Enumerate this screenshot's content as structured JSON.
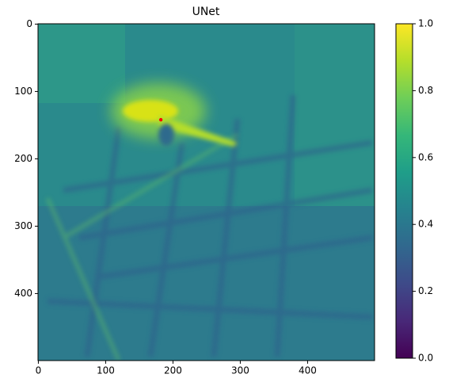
{
  "chart_data": {
    "type": "heatmap",
    "title": "UNet",
    "xlim": [
      -0.5,
      499.5
    ],
    "ylim": [
      499.5,
      -0.5
    ],
    "xticks": [
      0,
      100,
      200,
      300,
      400
    ],
    "yticks": [
      0,
      100,
      200,
      300,
      400
    ],
    "colormap": "viridis",
    "clim": [
      0,
      1
    ],
    "cticks": [
      {
        "value": 0,
        "label": "0.0"
      },
      {
        "value": 0.2,
        "label": "0.2"
      },
      {
        "value": 0.4,
        "label": "0.4"
      },
      {
        "value": 0.6,
        "label": "0.6"
      },
      {
        "value": 0.8,
        "label": "0.8"
      },
      {
        "value": 1,
        "label": "1.0"
      }
    ],
    "marker": {
      "x": 182,
      "y": 142,
      "color": "#ff0000"
    }
  }
}
